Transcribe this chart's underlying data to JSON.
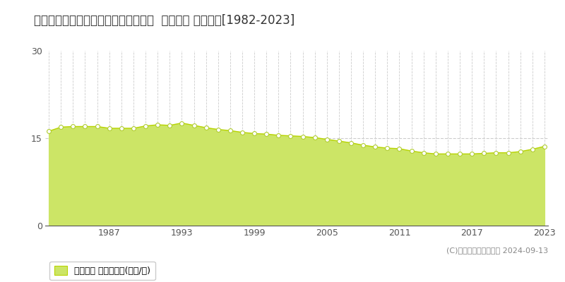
{
  "title": "北海道帯広市東３条南７丁目６番２外  地価公示 地価推移[1982-2023]",
  "years": [
    1982,
    1983,
    1984,
    1985,
    1986,
    1987,
    1988,
    1989,
    1990,
    1991,
    1992,
    1993,
    1994,
    1995,
    1996,
    1997,
    1998,
    1999,
    2000,
    2001,
    2002,
    2003,
    2004,
    2005,
    2006,
    2007,
    2008,
    2009,
    2010,
    2011,
    2012,
    2013,
    2014,
    2015,
    2016,
    2017,
    2018,
    2019,
    2020,
    2021,
    2022,
    2023
  ],
  "values": [
    16.2,
    16.9,
    17.0,
    17.0,
    17.0,
    16.7,
    16.7,
    16.7,
    17.1,
    17.3,
    17.2,
    17.6,
    17.2,
    16.8,
    16.5,
    16.3,
    16.0,
    15.8,
    15.7,
    15.5,
    15.4,
    15.3,
    15.1,
    14.8,
    14.5,
    14.2,
    13.8,
    13.5,
    13.3,
    13.2,
    12.8,
    12.5,
    12.3,
    12.3,
    12.3,
    12.3,
    12.4,
    12.5,
    12.5,
    12.7,
    13.1,
    13.6
  ],
  "fill_color": "#cce566",
  "line_color": "#b8d400",
  "marker_facecolor": "#ffffff",
  "marker_edgecolor": "#b0cc30",
  "background_color": "#ffffff",
  "grid_color": "#cccccc",
  "ylim": [
    0,
    30
  ],
  "yticks": [
    0,
    15,
    30
  ],
  "xtick_years": [
    1987,
    1993,
    1999,
    2005,
    2011,
    2017,
    2023
  ],
  "all_years_grid": true,
  "title_fontsize": 12,
  "legend_label": "地価公示 平均坪単価(万円/坪)",
  "copyright_text": "(C)土地価格ドットコム 2024-09-13"
}
